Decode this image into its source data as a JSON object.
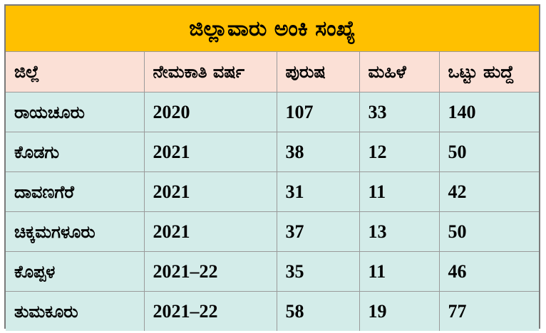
{
  "title": "ಜಿಲ್ಲಾವಾರು  ಅಂಕಿ ಸಂಖ್ಯೆ",
  "headers": [
    "ಜಿಲ್ಲೆ",
    "ನೇಮಕಾತಿ ವರ್ಷ",
    "ಪುರುಷ",
    "ಮಹಿಳೆ",
    "ಒಟ್ಟು ಹುದ್ದೆ"
  ],
  "rows": [
    [
      "ರಾಯಚೂರು",
      "2020",
      "107",
      "33",
      "140"
    ],
    [
      "ಕೊಡಗು",
      "2021",
      "38",
      "12",
      "50"
    ],
    [
      "ದಾವಣಗೆರೆ",
      "2021",
      "31",
      "11",
      "42"
    ],
    [
      "ಚಿಕ್ಕಮಗಳೂರು",
      "2021",
      "37",
      "13",
      "50"
    ],
    [
      "ಕೊಪ್ಪಳ",
      "2021–22",
      "35",
      "11",
      "46"
    ],
    [
      "ತುಮಕೂರು",
      "2021–22",
      "58",
      "19",
      "77"
    ]
  ],
  "colors": {
    "title_bg": "#ffc000",
    "header_bg": "#fbe0d6",
    "body_bg": "#d3ece9"
  }
}
